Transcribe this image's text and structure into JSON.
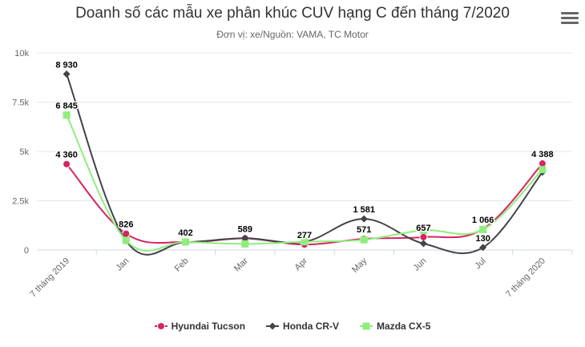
{
  "chart_data": {
    "type": "line",
    "title": "Doanh số các mẫu xe phân khúc CUV hạng C đến tháng 7/2020",
    "subtitle": "Đơn vị: xe/Nguồn: VAMA, TC Motor",
    "categories": [
      "7 tháng 2019",
      "Jan",
      "Feb",
      "Mar",
      "Apr",
      "May",
      "Jun",
      "Jul",
      "7 tháng 2020"
    ],
    "ylim": [
      0,
      10000
    ],
    "yticks": [
      {
        "value": 0,
        "label": "0"
      },
      {
        "value": 2500,
        "label": "2.5k"
      },
      {
        "value": 5000,
        "label": "5k"
      },
      {
        "value": 7500,
        "label": "7.5k"
      },
      {
        "value": 10000,
        "label": "10k"
      }
    ],
    "grid": true,
    "legend_position": "bottom",
    "series": [
      {
        "name": "Hyundai Tucson",
        "color": "#d62463",
        "marker": "circle",
        "values": [
          4360,
          826,
          402,
          589,
          277,
          571,
          657,
          1066,
          4388
        ],
        "labels": [
          {
            "index": 0,
            "text": "4 360",
            "pos": "above"
          },
          {
            "index": 1,
            "text": "826",
            "pos": "above"
          },
          {
            "index": 2,
            "text": "402",
            "pos": "above"
          },
          {
            "index": 3,
            "text": "589",
            "pos": "above"
          },
          {
            "index": 4,
            "text": "277",
            "pos": "above"
          },
          {
            "index": 5,
            "text": "571",
            "pos": "above"
          },
          {
            "index": 6,
            "text": "657",
            "pos": "above"
          },
          {
            "index": 7,
            "text": "1 066",
            "pos": "above"
          },
          {
            "index": 8,
            "text": "4 388",
            "pos": "above"
          }
        ]
      },
      {
        "name": "Honda CR-V",
        "color": "#434348",
        "marker": "diamond",
        "values": [
          8930,
          470,
          400,
          600,
          420,
          1581,
          330,
          130,
          3950
        ],
        "labels": [
          {
            "index": 0,
            "text": "8 930",
            "pos": "above"
          },
          {
            "index": 5,
            "text": "1 581",
            "pos": "above"
          },
          {
            "index": 7,
            "text": "130",
            "pos": "above"
          }
        ]
      },
      {
        "name": "Mazda CX-5",
        "color": "#90ed7d",
        "marker": "square",
        "values": [
          6845,
          490,
          410,
          310,
          420,
          520,
          1000,
          1040,
          4080
        ],
        "labels": [
          {
            "index": 0,
            "text": "6 845",
            "pos": "above"
          }
        ]
      }
    ]
  }
}
